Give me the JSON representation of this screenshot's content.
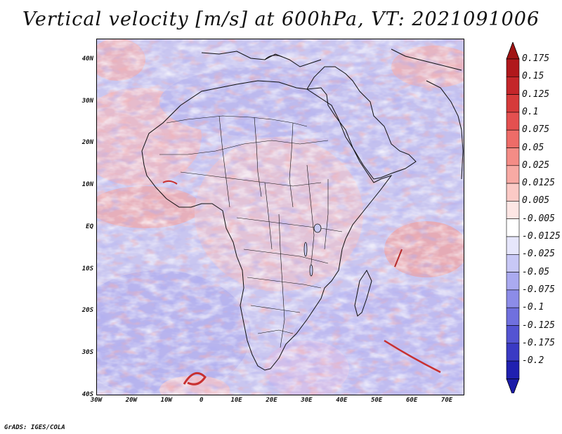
{
  "title": "Vertical velocity [m/s] at 600hPa, VT: 2021091006",
  "footer": "GrADS: IGES/COLA",
  "map": {
    "lon_range": [
      -30,
      75
    ],
    "lat_range": [
      -40,
      45
    ],
    "lat_ticks": [
      {
        "value": 40,
        "label": "40N"
      },
      {
        "value": 30,
        "label": "30N"
      },
      {
        "value": 20,
        "label": "20N"
      },
      {
        "value": 10,
        "label": "10N"
      },
      {
        "value": 0,
        "label": "EQ"
      },
      {
        "value": -10,
        "label": "10S"
      },
      {
        "value": -20,
        "label": "20S"
      },
      {
        "value": -30,
        "label": "30S"
      },
      {
        "value": -40,
        "label": "40S"
      }
    ],
    "lon_ticks": [
      {
        "value": -30,
        "label": "30W"
      },
      {
        "value": -20,
        "label": "20W"
      },
      {
        "value": -10,
        "label": "10W"
      },
      {
        "value": 0,
        "label": "0"
      },
      {
        "value": 10,
        "label": "10E"
      },
      {
        "value": 20,
        "label": "20E"
      },
      {
        "value": 30,
        "label": "30E"
      },
      {
        "value": 40,
        "label": "40E"
      },
      {
        "value": 50,
        "label": "50E"
      },
      {
        "value": 60,
        "label": "60E"
      },
      {
        "value": 70,
        "label": "70E"
      }
    ]
  },
  "colorbar": {
    "levels": [
      {
        "label": "0.175",
        "color": "#b0181c"
      },
      {
        "label": "0.15",
        "color": "#c4262a"
      },
      {
        "label": "0.125",
        "color": "#d63a3a"
      },
      {
        "label": "0.1",
        "color": "#e45050"
      },
      {
        "label": "0.075",
        "color": "#ee6c68"
      },
      {
        "label": "0.05",
        "color": "#f48c86"
      },
      {
        "label": "0.025",
        "color": "#f8aaa4"
      },
      {
        "label": "0.0125",
        "color": "#fbcac6"
      },
      {
        "label": "0.005",
        "color": "#fde6e4"
      },
      {
        "label": "-0.005",
        "color": "#ffffff"
      },
      {
        "label": "-0.0125",
        "color": "#e6e6fb"
      },
      {
        "label": "-0.025",
        "color": "#c8c8f6"
      },
      {
        "label": "-0.05",
        "color": "#aaaaf0"
      },
      {
        "label": "-0.075",
        "color": "#8c8ce8"
      },
      {
        "label": "-0.1",
        "color": "#7070de"
      },
      {
        "label": "-0.125",
        "color": "#5454d2"
      },
      {
        "label": "-0.175",
        "color": "#3a3ac4"
      },
      {
        "label": "-0.2",
        "color": "#2020b0"
      }
    ],
    "end_colors": {
      "top": "#a01414",
      "bottom": "#1c1ca8"
    }
  }
}
